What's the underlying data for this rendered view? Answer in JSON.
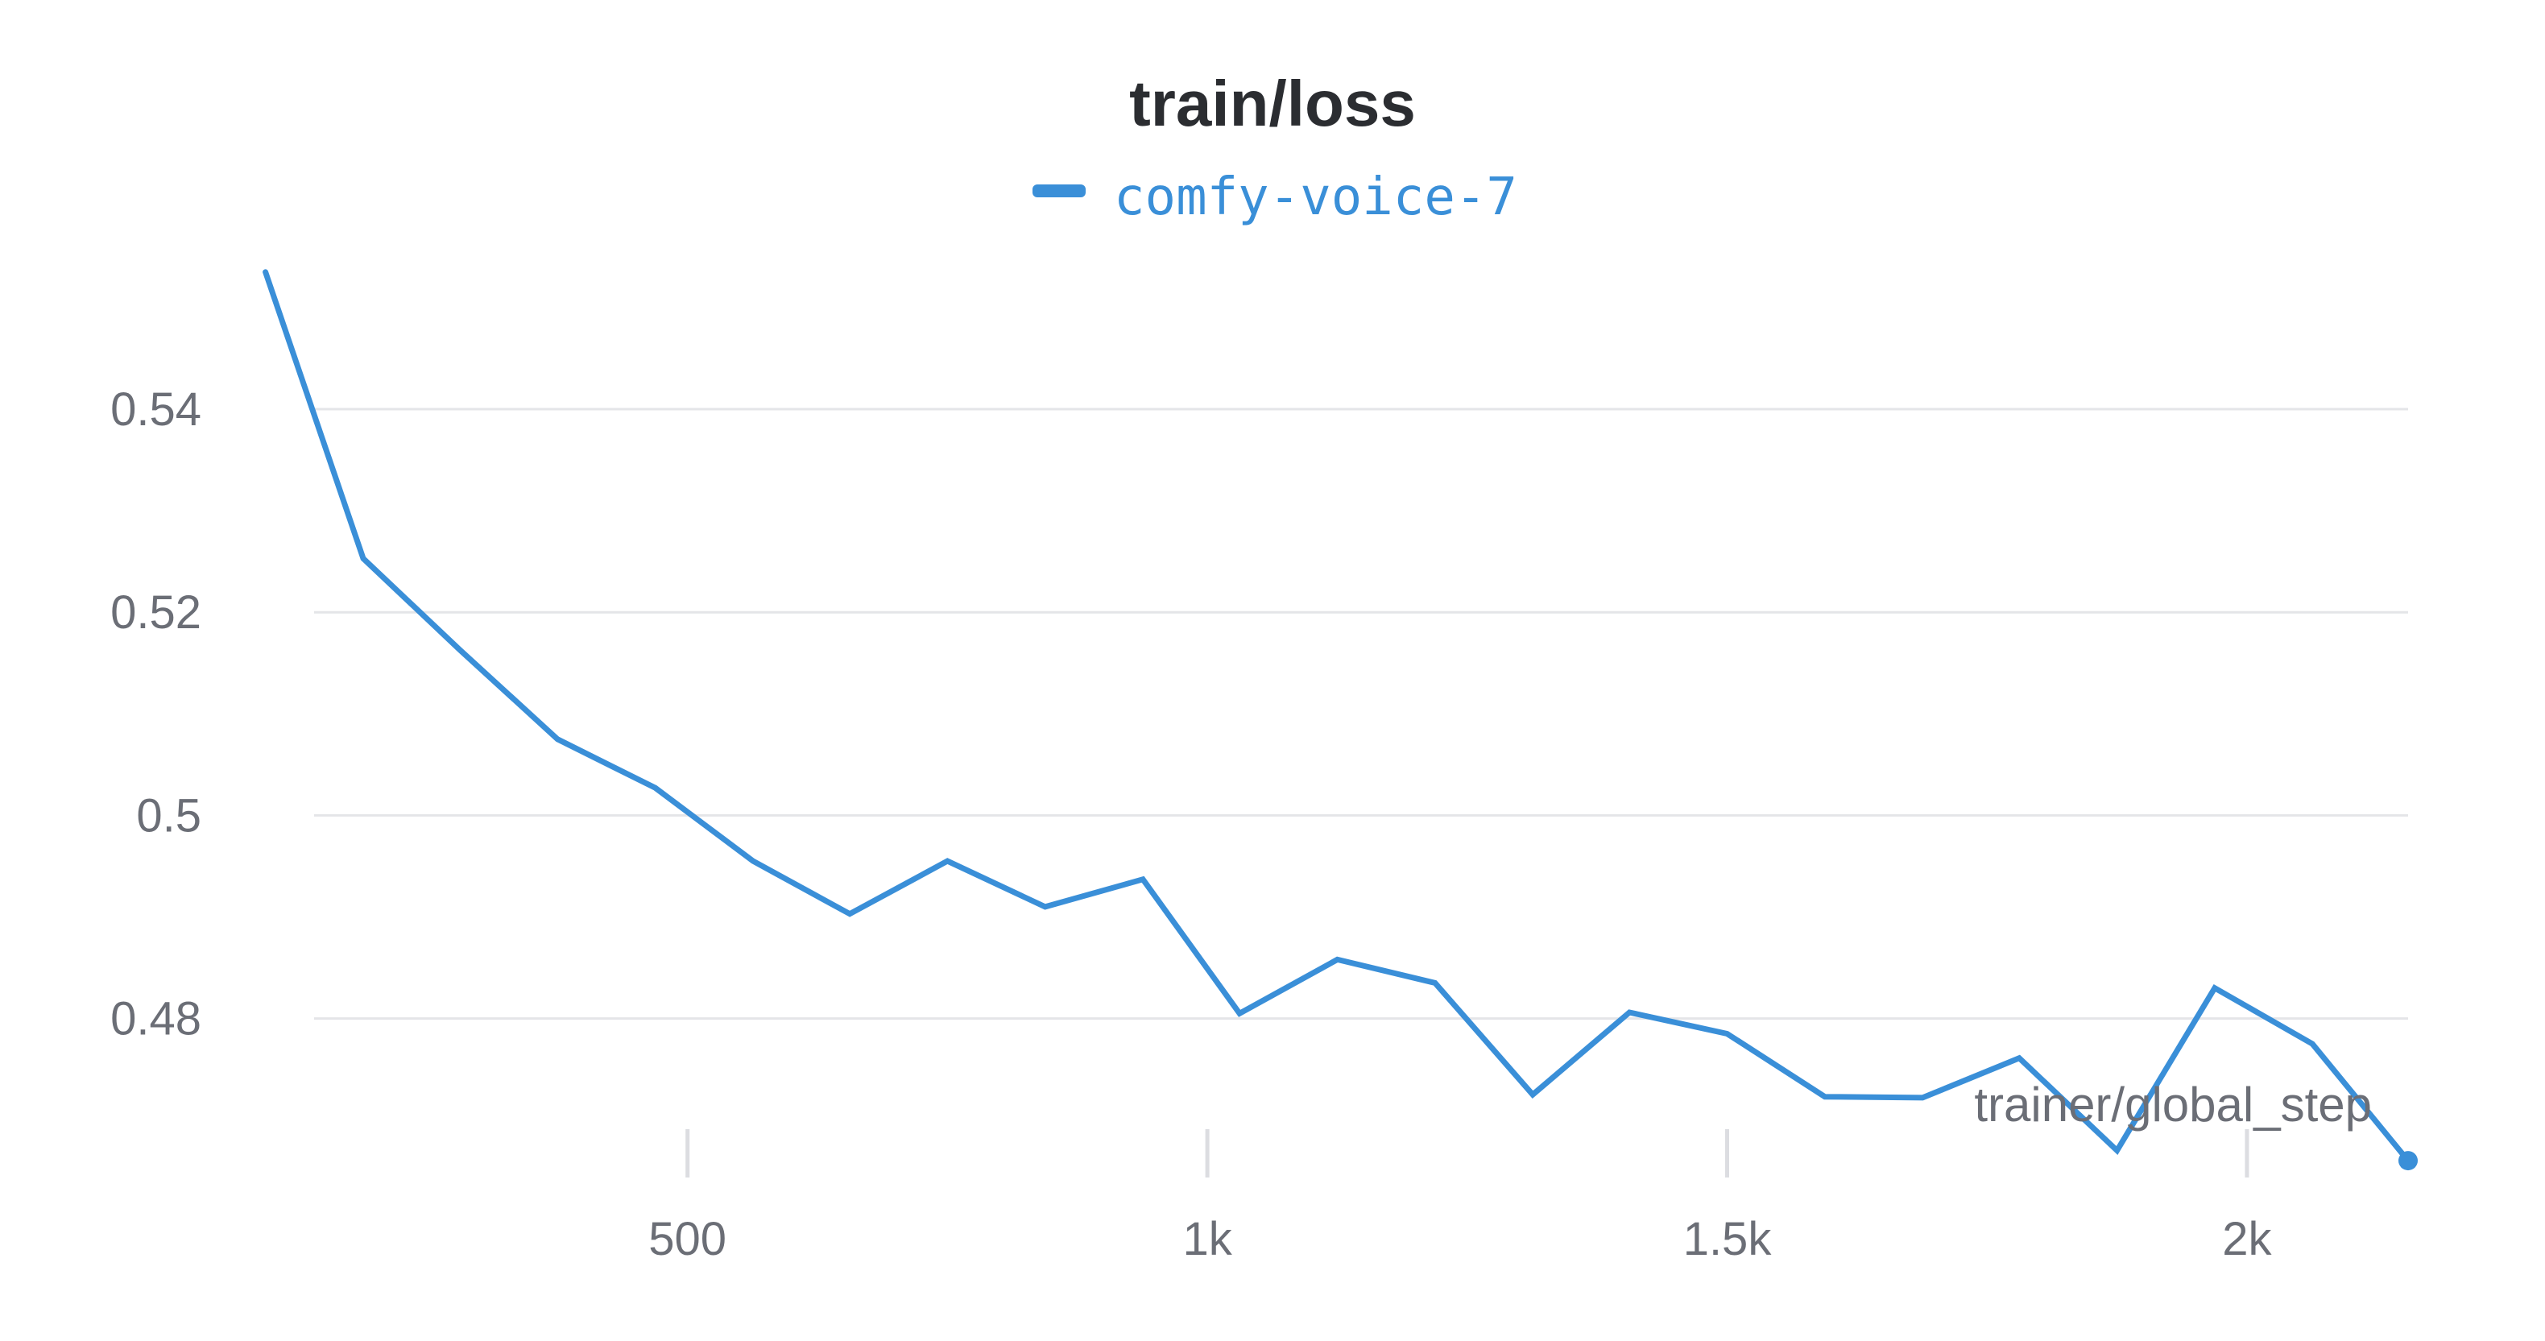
{
  "chart_data": {
    "type": "line",
    "title": "train/loss",
    "xlabel": "trainer/global_step",
    "ylabel": "",
    "xlim": [
      85,
      2155
    ],
    "ylim": [
      0.4645,
      0.5565
    ],
    "x_ticks": [
      500,
      1000,
      1500,
      2000
    ],
    "x_tick_labels": [
      "500",
      "1k",
      "1.5k",
      "2k"
    ],
    "y_ticks": [
      0.48,
      0.5,
      0.52,
      0.54
    ],
    "y_tick_labels": [
      "0.48",
      "0.5",
      "0.52",
      "0.54"
    ],
    "grid": true,
    "legend_position": "top-center",
    "series": [
      {
        "name": "comfy-voice-7",
        "color": "#3a8fd8",
        "x": [
          94,
          188,
          281,
          375,
          469,
          563,
          656,
          750,
          844,
          938,
          1031,
          1125,
          1219,
          1313,
          1406,
          1500,
          1594,
          1688,
          1781,
          1875,
          1969,
          2063,
          2155
        ],
        "y": [
          0.5535,
          0.5253,
          0.5163,
          0.5075,
          0.5027,
          0.4955,
          0.4903,
          0.4955,
          0.491,
          0.4937,
          0.4805,
          0.4858,
          0.4835,
          0.4725,
          0.4806,
          0.4785,
          0.4723,
          0.4722,
          0.4761,
          0.467,
          0.483,
          0.4775,
          0.466
        ]
      }
    ]
  }
}
